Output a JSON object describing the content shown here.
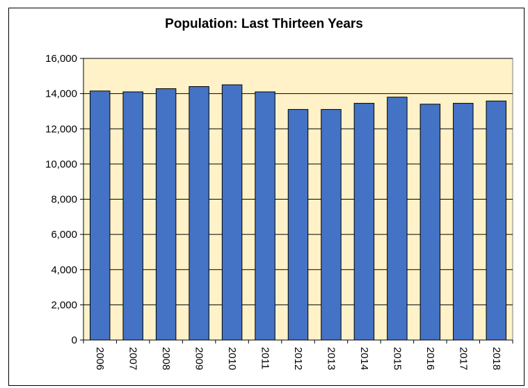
{
  "chart_data": {
    "type": "bar",
    "title": "Population: Last Thirteen Years",
    "xlabel": "",
    "ylabel": "",
    "categories": [
      "2006",
      "2007",
      "2008",
      "2009",
      "2010",
      "2011",
      "2012",
      "2013",
      "2014",
      "2015",
      "2016",
      "2017",
      "2018"
    ],
    "values": [
      14150,
      14100,
      14280,
      14400,
      14500,
      14100,
      13100,
      13100,
      13450,
      13800,
      13400,
      13450,
      13580
    ],
    "ylim": [
      0,
      16000
    ],
    "y_ticks": [
      0,
      2000,
      4000,
      6000,
      8000,
      10000,
      12000,
      14000,
      16000
    ],
    "y_tick_labels": [
      "0",
      "2,000",
      "4,000",
      "6,000",
      "8,000",
      "10,000",
      "12,000",
      "14,000",
      "16,000"
    ],
    "grid": true,
    "plot_background": "#FFF2C8",
    "bar_color": "#4472C4",
    "legend": "none"
  }
}
